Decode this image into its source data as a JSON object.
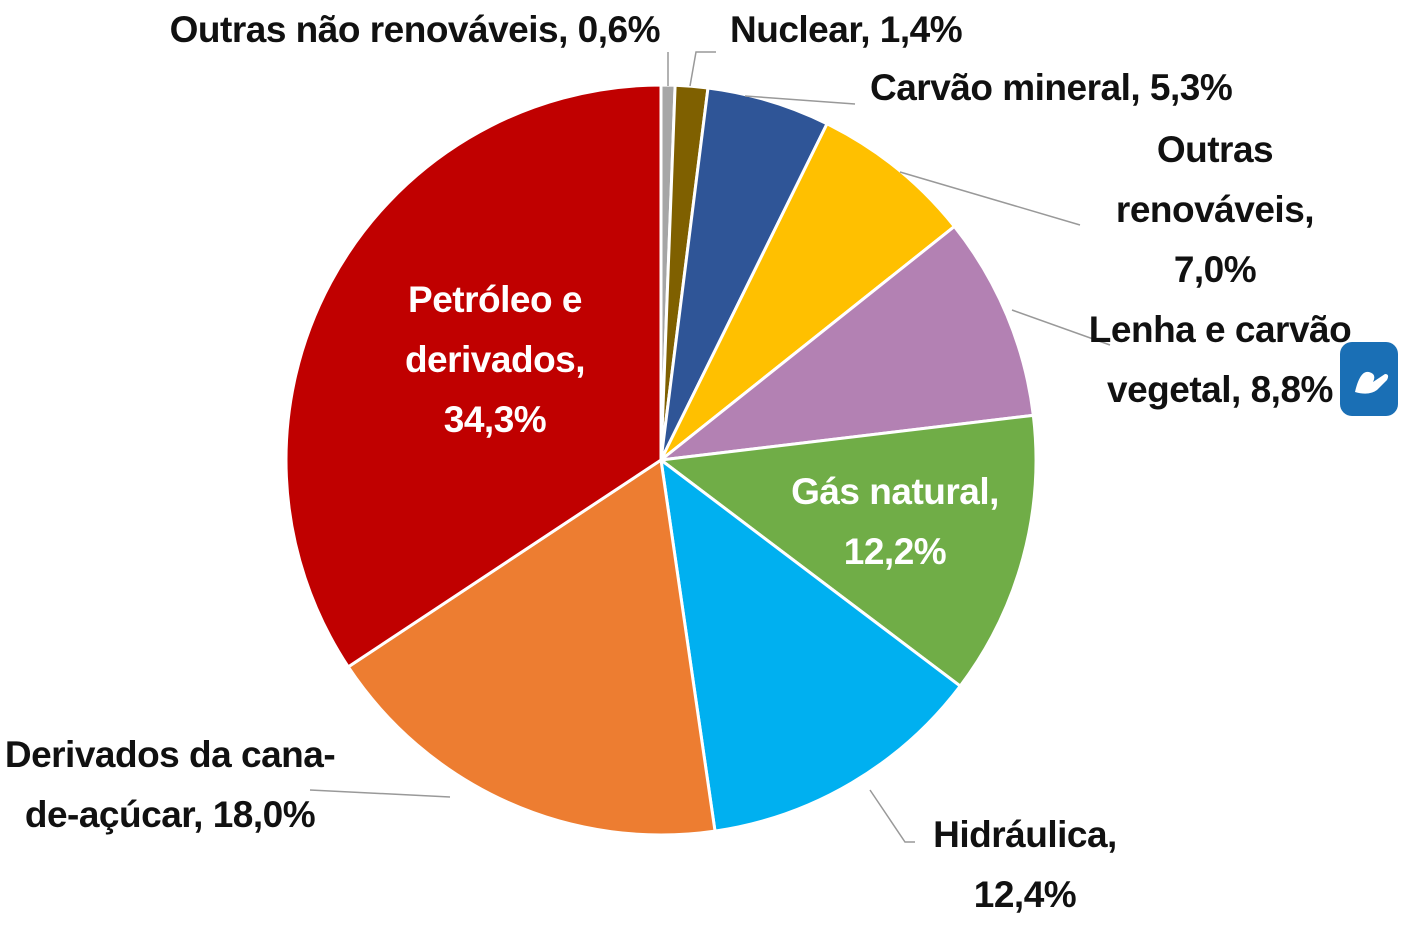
{
  "chart_data": {
    "type": "pie",
    "categories": [
      "Outras não renováveis,",
      "Nuclear,",
      "Carvão mineral,",
      "Outras renováveis,",
      "Lenha e carvão vegetal,",
      "Gás natural,",
      "Hidráulica,",
      "Derivados da cana-de-açúcar,",
      "Petróleo e derivados,"
    ],
    "values": [
      0.6,
      1.4,
      5.3,
      7.0,
      8.8,
      12.2,
      12.4,
      18.0,
      34.3
    ],
    "value_labels": [
      "0,6%",
      "1,4%",
      "5,3%",
      "7,0%",
      "8,8%",
      "12,2%",
      "12,4%",
      "18,0%",
      "34,3%"
    ],
    "colors": [
      "#a6a6a6",
      "#7f6000",
      "#2f5597",
      "#ffc000",
      "#b381b3",
      "#70ad47",
      "#00b0f0",
      "#ed7d31",
      "#c00000"
    ]
  }
}
